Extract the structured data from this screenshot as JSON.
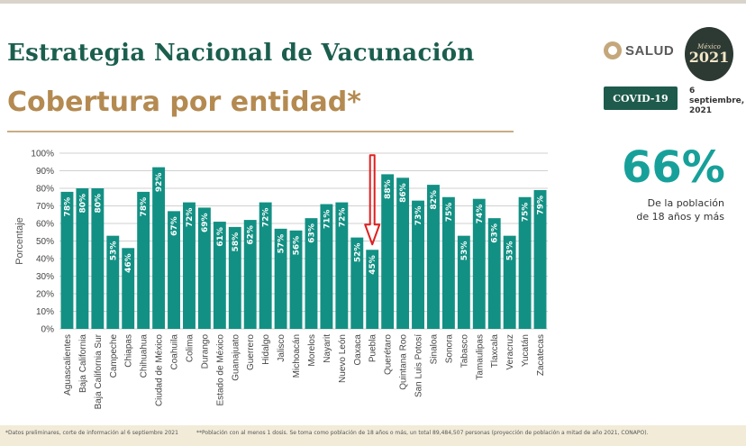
{
  "header": {
    "title": "Estrategia Nacional de Vacunación",
    "subtitle": "Cobertura por entidad*"
  },
  "logos": {
    "salud_text": "SALUD",
    "seal_small": "México",
    "seal_year": "2021"
  },
  "badge": "COVID-19",
  "date": {
    "day": "6",
    "month": "septiembre,",
    "year": "2021"
  },
  "summary": {
    "value": "66%",
    "note_line1": "De la población",
    "note_line2": "de 18 años y más"
  },
  "footer": {
    "note1": "*Datos preliminares, corte de información al 6 septiembre 2021",
    "note2": "**Población con al menos 1 dosis. Se toma como población de 18 años o más, un total 89,484,507 personas (proyección de población a mitad de año 2021, CONAPO)."
  },
  "colors": {
    "bar": "#139084",
    "grid": "#d0d0d0",
    "arrow": "#e02020",
    "title": "#1b5e4e",
    "subtitle": "#b48a51",
    "big_pct": "#17a09a"
  },
  "chart_data": {
    "type": "bar",
    "ylabel": "Porcentaje",
    "ylim": [
      0,
      100
    ],
    "yticks": [
      "0%",
      "10%",
      "20%",
      "30%",
      "40%",
      "50%",
      "60%",
      "70%",
      "80%",
      "90%",
      "100%"
    ],
    "grid": true,
    "categories": [
      "Aguascalientes",
      "Baja California",
      "Baja California Sur",
      "Campeche",
      "Chiapas",
      "Chihuahua",
      "Ciudad de México",
      "Coahuila",
      "Colima",
      "Durango",
      "Estado de México",
      "Guanajuato",
      "Guerrero",
      "Hidalgo",
      "Jalisco",
      "Michoacán",
      "Morelos",
      "Nayarit",
      "Nuevo León",
      "Oaxaca",
      "Puebla",
      "Querétaro",
      "Quintana Roo",
      "San Luis Potosí",
      "Sinaloa",
      "Sonora",
      "Tabasco",
      "Tamaulipas",
      "Tlaxcala",
      "Veracruz",
      "Yucatán",
      "Zacatecas"
    ],
    "values": [
      78,
      80,
      80,
      53,
      46,
      78,
      92,
      67,
      72,
      69,
      61,
      58,
      62,
      72,
      57,
      56,
      63,
      71,
      72,
      52,
      45,
      88,
      86,
      73,
      82,
      75,
      53,
      74,
      63,
      53,
      75,
      79
    ],
    "value_labels": [
      "78%",
      "80%",
      "80%",
      "53%",
      "46%",
      "78%",
      "92%",
      "67%",
      "72%",
      "69%",
      "61%",
      "58%",
      "62%",
      "72%",
      "57%",
      "56%",
      "63%",
      "71%",
      "72%",
      "52%",
      "45%",
      "88%",
      "86%",
      "73%",
      "82%",
      "75%",
      "53%",
      "74%",
      "63%",
      "53%",
      "75%",
      "79%"
    ],
    "highlight_category": "Puebla"
  }
}
